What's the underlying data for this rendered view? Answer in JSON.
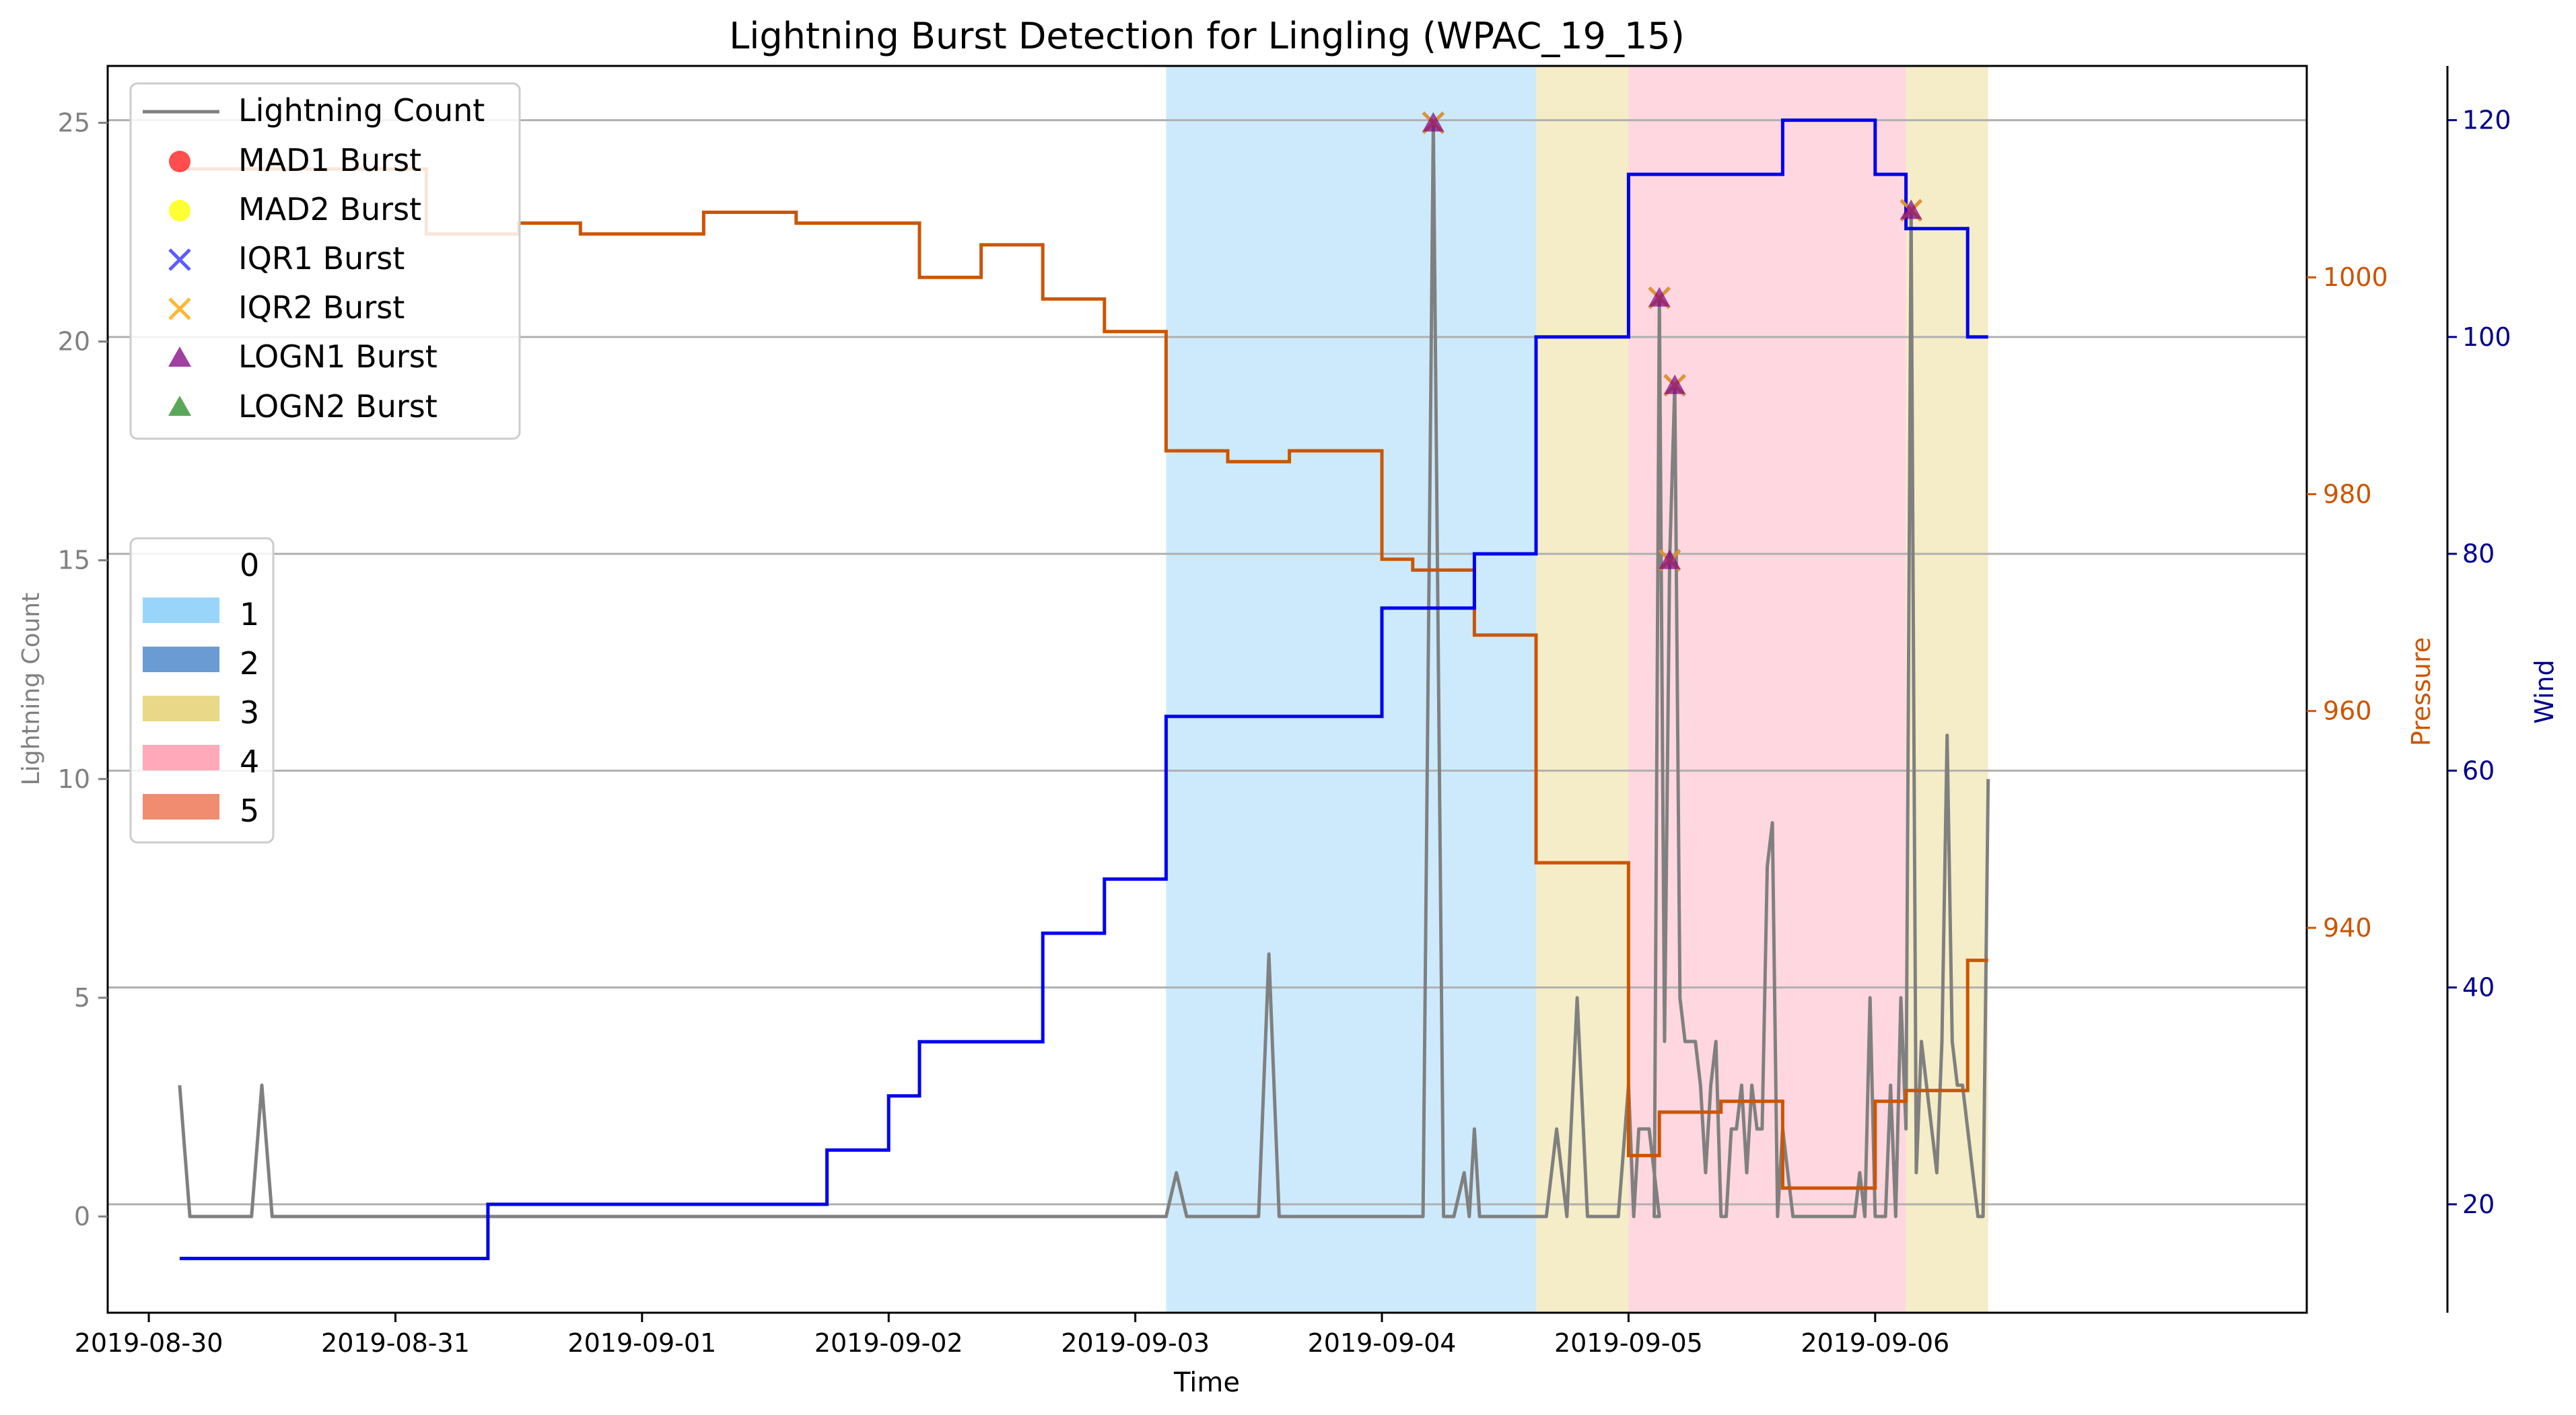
{
  "chart_data": {
    "type": "line",
    "title": "Lightning Burst Detection for Lingling (WPAC_19_15)",
    "xlabel": "Time",
    "ylabel_left": "Lightning Count",
    "ylabel_pressure": "Pressure",
    "ylabel_wind": "Wind",
    "x_range": [
      "2019-08-29T20:00",
      "2019-09-07T18:00"
    ],
    "ylim_left": [
      -2.2,
      26.3
    ],
    "ylim_pressure": [
      904.5,
      1019.5
    ],
    "ylim_wind": [
      10,
      125
    ],
    "x_ticks": [
      "2019-08-30",
      "2019-08-31",
      "2019-09-01",
      "2019-09-02",
      "2019-09-03",
      "2019-09-04",
      "2019-09-05",
      "2019-09-06"
    ],
    "y_ticks_left": [
      "0",
      "5",
      "10",
      "15",
      "20",
      "25"
    ],
    "y_ticks_pressure": [
      "940",
      "960",
      "980",
      "1000"
    ],
    "y_ticks_wind": [
      "20",
      "40",
      "60",
      "80",
      "100",
      "120"
    ],
    "grid": "horizontal",
    "colors": {
      "lightning": "#808080",
      "pressure": "#cc5500",
      "wind": "#0000ee",
      "pressure_axis": "#cc5500",
      "wind_axis": "#00008b",
      "cat1": "#87cefa",
      "cat2": "#4682c8",
      "cat3": "#e6d47a",
      "cat4": "#ffa0b4",
      "cat5": "#f08060"
    },
    "legend_series": [
      {
        "label": "Lightning Count",
        "kind": "line",
        "color": "#808080"
      },
      {
        "label": "MAD1 Burst",
        "kind": "circle",
        "color": "#ff2222"
      },
      {
        "label": "MAD2 Burst",
        "kind": "circle",
        "color": "#ffff00"
      },
      {
        "label": "IQR1 Burst",
        "kind": "x",
        "color": "#3333ff"
      },
      {
        "label": "IQR2 Burst",
        "kind": "x",
        "color": "#ffa500"
      },
      {
        "label": "LOGN1 Burst",
        "kind": "triangle",
        "color": "#800080"
      },
      {
        "label": "LOGN2 Burst",
        "kind": "triangle",
        "color": "#228b22"
      }
    ],
    "legend_category": [
      {
        "label": "0",
        "color": ""
      },
      {
        "label": "1",
        "color": "#87cefa"
      },
      {
        "label": "2",
        "color": "#4682c8"
      },
      {
        "label": "3",
        "color": "#e6d47a"
      },
      {
        "label": "4",
        "color": "#ffa0b4"
      },
      {
        "label": "5",
        "color": "#f08060"
      }
    ],
    "category_spans": [
      {
        "category": "1",
        "start": "2019-09-03T03:00",
        "end": "2019-09-04T15:00"
      },
      {
        "category": "3",
        "start": "2019-09-04T15:00",
        "end": "2019-09-05T00:00"
      },
      {
        "category": "4",
        "start": "2019-09-05T00:00",
        "end": "2019-09-06T03:00"
      },
      {
        "category": "3",
        "start": "2019-09-06T03:00",
        "end": "2019-09-06T11:00"
      }
    ],
    "lightning": [
      [
        "2019-08-30T03:00",
        3
      ],
      [
        "2019-08-30T04:00",
        0
      ],
      [
        "2019-08-30T10:00",
        0
      ],
      [
        "2019-08-30T11:00",
        3
      ],
      [
        "2019-08-30T12:00",
        0
      ],
      [
        "2019-09-03T03:00",
        0
      ],
      [
        "2019-09-03T04:00",
        1
      ],
      [
        "2019-09-03T05:00",
        0
      ],
      [
        "2019-09-03T12:00",
        0
      ],
      [
        "2019-09-03T13:00",
        6
      ],
      [
        "2019-09-03T14:00",
        0
      ],
      [
        "2019-09-04T04:00",
        0
      ],
      [
        "2019-09-04T05:00",
        25
      ],
      [
        "2019-09-04T06:00",
        0
      ],
      [
        "2019-09-04T07:00",
        0
      ],
      [
        "2019-09-04T08:00",
        1
      ],
      [
        "2019-09-04T08:30",
        0
      ],
      [
        "2019-09-04T09:00",
        2
      ],
      [
        "2019-09-04T09:30",
        0
      ],
      [
        "2019-09-04T16:00",
        0
      ],
      [
        "2019-09-04T17:00",
        2
      ],
      [
        "2019-09-04T18:00",
        0
      ],
      [
        "2019-09-04T19:00",
        5
      ],
      [
        "2019-09-04T20:00",
        0
      ],
      [
        "2019-09-04T23:00",
        0
      ],
      [
        "2019-09-05T00:00",
        3
      ],
      [
        "2019-09-05T00:30",
        0
      ],
      [
        "2019-09-05T01:00",
        2
      ],
      [
        "2019-09-05T02:00",
        2
      ],
      [
        "2019-09-05T03:00",
        0
      ],
      [
        "2019-09-05T02:30",
        0
      ],
      [
        "2019-09-05T03:00",
        21
      ],
      [
        "2019-09-05T03:30",
        4
      ],
      [
        "2019-09-05T04:00",
        15
      ],
      [
        "2019-09-05T04:30",
        19
      ],
      [
        "2019-09-05T05:00",
        5
      ],
      [
        "2019-09-05T05:30",
        4
      ],
      [
        "2019-09-05T06:00",
        4
      ],
      [
        "2019-09-05T06:30",
        4
      ],
      [
        "2019-09-05T07:00",
        3
      ],
      [
        "2019-09-05T07:30",
        1
      ],
      [
        "2019-09-05T08:00",
        3
      ],
      [
        "2019-09-05T08:30",
        4
      ],
      [
        "2019-09-05T09:00",
        0
      ],
      [
        "2019-09-05T09:30",
        0
      ],
      [
        "2019-09-05T10:00",
        2
      ],
      [
        "2019-09-05T10:30",
        2
      ],
      [
        "2019-09-05T11:00",
        3
      ],
      [
        "2019-09-05T11:30",
        1
      ],
      [
        "2019-09-05T12:00",
        3
      ],
      [
        "2019-09-05T12:30",
        2
      ],
      [
        "2019-09-05T13:00",
        2
      ],
      [
        "2019-09-05T13:30",
        8
      ],
      [
        "2019-09-05T14:00",
        9
      ],
      [
        "2019-09-05T14:30",
        0
      ],
      [
        "2019-09-05T15:00",
        2
      ],
      [
        "2019-09-05T15:30",
        1
      ],
      [
        "2019-09-05T16:00",
        0
      ],
      [
        "2019-09-05T22:00",
        0
      ],
      [
        "2019-09-05T22:30",
        1
      ],
      [
        "2019-09-05T23:00",
        0
      ],
      [
        "2019-09-05T23:30",
        5
      ],
      [
        "2019-09-06T00:00",
        0
      ],
      [
        "2019-09-06T01:00",
        0
      ],
      [
        "2019-09-06T01:30",
        3
      ],
      [
        "2019-09-06T02:00",
        0
      ],
      [
        "2019-09-06T02:30",
        5
      ],
      [
        "2019-09-06T03:00",
        2
      ],
      [
        "2019-09-06T03:30",
        23
      ],
      [
        "2019-09-06T04:00",
        1
      ],
      [
        "2019-09-06T04:30",
        4
      ],
      [
        "2019-09-06T05:00",
        3
      ],
      [
        "2019-09-06T05:30",
        2
      ],
      [
        "2019-09-06T06:00",
        1
      ],
      [
        "2019-09-06T06:30",
        4
      ],
      [
        "2019-09-06T07:00",
        11
      ],
      [
        "2019-09-06T07:30",
        4
      ],
      [
        "2019-09-06T08:00",
        3
      ],
      [
        "2019-09-06T08:30",
        3
      ],
      [
        "2019-09-06T09:00",
        2
      ],
      [
        "2019-09-06T09:30",
        1
      ],
      [
        "2019-09-06T10:00",
        0
      ],
      [
        "2019-09-06T10:30",
        0
      ],
      [
        "2019-09-06T11:00",
        10
      ]
    ],
    "pressure": [
      [
        "2019-08-30T03:00",
        1010
      ],
      [
        "2019-08-31T03:00",
        1010
      ],
      [
        "2019-08-31T03:00",
        1004
      ],
      [
        "2019-08-31T12:00",
        1004
      ],
      [
        "2019-08-31T12:00",
        1005
      ],
      [
        "2019-08-31T18:00",
        1005
      ],
      [
        "2019-08-31T18:00",
        1004
      ],
      [
        "2019-09-01T06:00",
        1004
      ],
      [
        "2019-09-01T06:00",
        1006
      ],
      [
        "2019-09-01T15:00",
        1006
      ],
      [
        "2019-09-01T15:00",
        1005
      ],
      [
        "2019-09-02T03:00",
        1005
      ],
      [
        "2019-09-02T03:00",
        1000
      ],
      [
        "2019-09-02T09:00",
        1000
      ],
      [
        "2019-09-02T09:00",
        1003
      ],
      [
        "2019-09-02T15:00",
        1003
      ],
      [
        "2019-09-02T15:00",
        998
      ],
      [
        "2019-09-02T21:00",
        998
      ],
      [
        "2019-09-02T21:00",
        995
      ],
      [
        "2019-09-03T03:00",
        995
      ],
      [
        "2019-09-03T03:00",
        984
      ],
      [
        "2019-09-03T09:00",
        984
      ],
      [
        "2019-09-03T09:00",
        983
      ],
      [
        "2019-09-03T15:00",
        983
      ],
      [
        "2019-09-03T15:00",
        984
      ],
      [
        "2019-09-04T00:00",
        984
      ],
      [
        "2019-09-04T00:00",
        974
      ],
      [
        "2019-09-04T03:00",
        974
      ],
      [
        "2019-09-04T03:00",
        973
      ],
      [
        "2019-09-04T09:00",
        973
      ],
      [
        "2019-09-04T09:00",
        967
      ],
      [
        "2019-09-04T15:00",
        967
      ],
      [
        "2019-09-04T15:00",
        946
      ],
      [
        "2019-09-05T00:00",
        946
      ],
      [
        "2019-09-05T00:00",
        919
      ],
      [
        "2019-09-05T03:00",
        919
      ],
      [
        "2019-09-05T03:00",
        923
      ],
      [
        "2019-09-05T09:00",
        923
      ],
      [
        "2019-09-05T09:00",
        924
      ],
      [
        "2019-09-05T15:00",
        924
      ],
      [
        "2019-09-05T15:00",
        916
      ],
      [
        "2019-09-06T00:00",
        916
      ],
      [
        "2019-09-06T00:00",
        924
      ],
      [
        "2019-09-06T03:00",
        924
      ],
      [
        "2019-09-06T03:00",
        925
      ],
      [
        "2019-09-06T09:00",
        925
      ],
      [
        "2019-09-06T09:00",
        937
      ],
      [
        "2019-09-06T11:00",
        937
      ]
    ],
    "wind": [
      [
        "2019-08-30T03:00",
        15
      ],
      [
        "2019-08-31T09:00",
        15
      ],
      [
        "2019-08-31T09:00",
        20
      ],
      [
        "2019-09-01T18:00",
        20
      ],
      [
        "2019-09-01T18:00",
        25
      ],
      [
        "2019-09-02T00:00",
        25
      ],
      [
        "2019-09-02T00:00",
        30
      ],
      [
        "2019-09-02T03:00",
        30
      ],
      [
        "2019-09-02T03:00",
        35
      ],
      [
        "2019-09-02T15:00",
        35
      ],
      [
        "2019-09-02T15:00",
        45
      ],
      [
        "2019-09-02T21:00",
        45
      ],
      [
        "2019-09-02T21:00",
        50
      ],
      [
        "2019-09-03T03:00",
        50
      ],
      [
        "2019-09-03T03:00",
        65
      ],
      [
        "2019-09-04T00:00",
        65
      ],
      [
        "2019-09-04T00:00",
        75
      ],
      [
        "2019-09-04T09:00",
        75
      ],
      [
        "2019-09-04T09:00",
        80
      ],
      [
        "2019-09-04T15:00",
        80
      ],
      [
        "2019-09-04T15:00",
        100
      ],
      [
        "2019-09-05T00:00",
        100
      ],
      [
        "2019-09-05T00:00",
        115
      ],
      [
        "2019-09-05T15:00",
        115
      ],
      [
        "2019-09-05T15:00",
        120
      ],
      [
        "2019-09-06T00:00",
        120
      ],
      [
        "2019-09-06T00:00",
        115
      ],
      [
        "2019-09-06T03:00",
        115
      ],
      [
        "2019-09-06T03:00",
        110
      ],
      [
        "2019-09-06T09:00",
        110
      ],
      [
        "2019-09-06T09:00",
        100
      ],
      [
        "2019-09-06T11:00",
        100
      ]
    ],
    "bursts": [
      {
        "time": "2019-09-04T05:00",
        "value": 25,
        "markers": [
          "IQR1 Burst",
          "IQR2 Burst",
          "LOGN1 Burst"
        ]
      },
      {
        "time": "2019-09-05T03:00",
        "value": 21,
        "markers": [
          "IQR1 Burst",
          "IQR2 Burst",
          "LOGN1 Burst"
        ]
      },
      {
        "time": "2019-09-05T04:00",
        "value": 15,
        "markers": [
          "IQR1 Burst",
          "IQR2 Burst",
          "LOGN1 Burst"
        ]
      },
      {
        "time": "2019-09-05T04:30",
        "value": 19,
        "markers": [
          "IQR1 Burst",
          "IQR2 Burst",
          "LOGN1 Burst"
        ]
      },
      {
        "time": "2019-09-06T03:30",
        "value": 23,
        "markers": [
          "IQR1 Burst",
          "IQR2 Burst",
          "LOGN1 Burst"
        ]
      }
    ]
  }
}
